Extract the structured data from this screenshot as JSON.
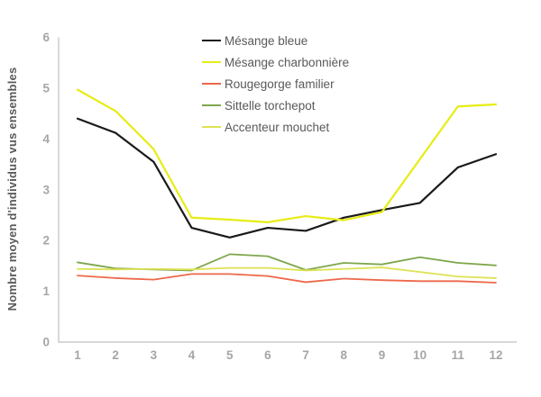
{
  "chart_data": {
    "type": "line",
    "title": "",
    "xlabel": "",
    "ylabel": "Nombre moyen d'individus vus ensembles",
    "x": [
      1,
      2,
      3,
      4,
      5,
      6,
      7,
      8,
      9,
      10,
      11,
      12
    ],
    "ylim": [
      0,
      6
    ],
    "yticks": [
      0,
      1,
      2,
      3,
      4,
      5,
      6
    ],
    "grid": false,
    "legend_position": "inside-top-center",
    "background": "#ffffff",
    "axis_color": "#bfbfbf",
    "tick_label_color": "#a6a6a6",
    "text_color": "#595959",
    "series": [
      {
        "name": "Mésange bleue",
        "color": "#1a1a1a",
        "line_width": 2.2,
        "values": [
          4.4,
          4.12,
          3.55,
          2.25,
          2.06,
          2.25,
          2.19,
          2.45,
          2.6,
          2.74,
          3.44,
          3.7
        ]
      },
      {
        "name": "Mésange charbonnière",
        "color": "#e7ec14",
        "line_width": 2.2,
        "values": [
          4.97,
          4.55,
          3.8,
          2.45,
          2.41,
          2.36,
          2.48,
          2.4,
          2.56,
          3.6,
          4.64,
          4.68
        ]
      },
      {
        "name": "Rougegorge familier",
        "color": "#ed684b",
        "line_width": 1.8,
        "values": [
          1.31,
          1.26,
          1.23,
          1.34,
          1.34,
          1.3,
          1.18,
          1.25,
          1.22,
          1.2,
          1.2,
          1.17
        ]
      },
      {
        "name": "Sittelle torchepot",
        "color": "#7ea64b",
        "line_width": 1.8,
        "values": [
          1.57,
          1.45,
          1.43,
          1.41,
          1.73,
          1.69,
          1.42,
          1.56,
          1.53,
          1.67,
          1.56,
          1.51
        ]
      },
      {
        "name": "Accenteur mouchet",
        "color": "#dde254",
        "line_width": 1.8,
        "values": [
          1.44,
          1.43,
          1.44,
          1.43,
          1.46,
          1.46,
          1.41,
          1.44,
          1.47,
          1.38,
          1.29,
          1.26
        ]
      }
    ]
  }
}
